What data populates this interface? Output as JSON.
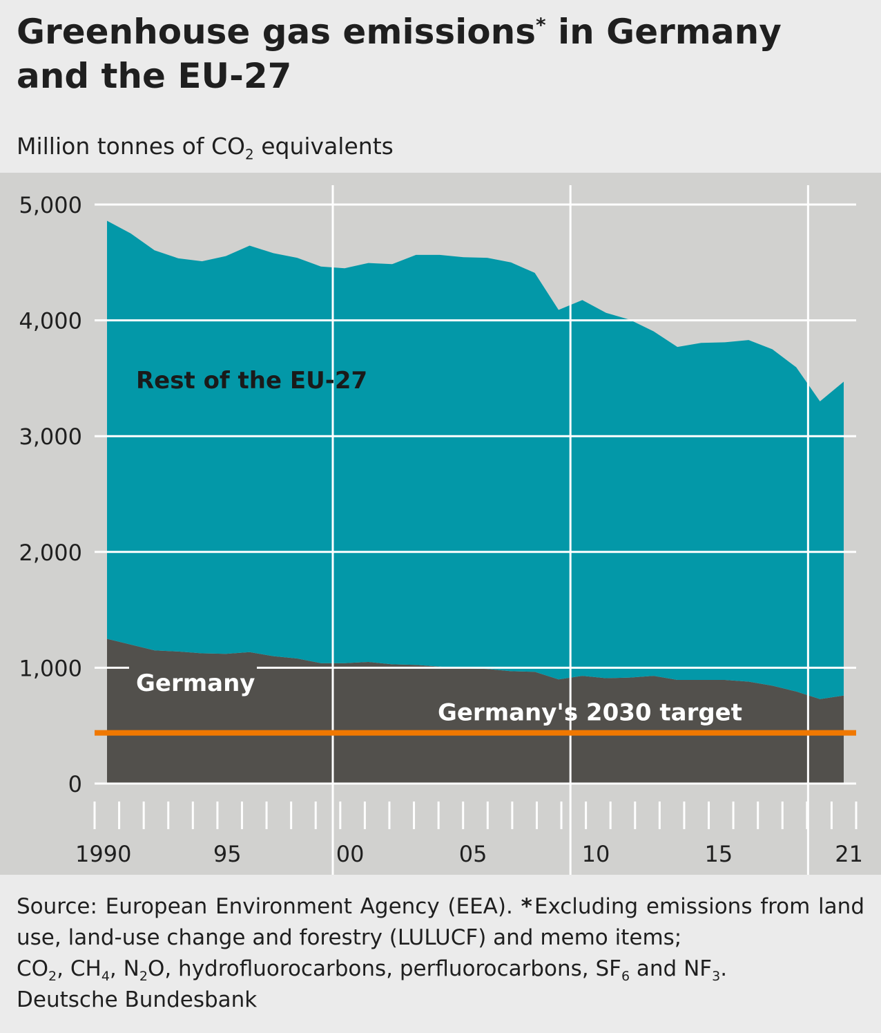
{
  "header": {
    "title_part1": "Greenhouse gas emissions",
    "title_asterisk": "*",
    "title_part2": " in Germany and the EU-27",
    "unit_part1": "Million tonnes of CO",
    "unit_sub": "2",
    "unit_part2": " equivalents"
  },
  "chart_data": {
    "type": "area",
    "stacked": true,
    "x": [
      1990,
      1991,
      1992,
      1993,
      1994,
      1995,
      1996,
      1997,
      1998,
      1999,
      2000,
      2001,
      2002,
      2003,
      2004,
      2005,
      2006,
      2007,
      2008,
      2009,
      2010,
      2011,
      2012,
      2013,
      2014,
      2015,
      2016,
      2017,
      2018,
      2019,
      2020,
      2021
    ],
    "x_tick_labels": [
      {
        "x": 1990,
        "label": "1990"
      },
      {
        "x": 1995,
        "label": "95"
      },
      {
        "x": 2000,
        "label": "00"
      },
      {
        "x": 2005,
        "label": "05"
      },
      {
        "x": 2010,
        "label": "10"
      },
      {
        "x": 2015,
        "label": "15"
      },
      {
        "x": 2021,
        "label": "21"
      }
    ],
    "ylim": [
      0,
      5000
    ],
    "y_ticks": [
      0,
      1000,
      2000,
      3000,
      4000,
      5000
    ],
    "y_tick_labels": [
      "0",
      "1,000",
      "2,000",
      "3,000",
      "4,000",
      "5,000"
    ],
    "grid": true,
    "series": [
      {
        "name": "Germany",
        "color": "#52504c",
        "values": [
          1250,
          1200,
          1150,
          1140,
          1125,
          1120,
          1135,
          1100,
          1080,
          1040,
          1040,
          1050,
          1030,
          1025,
          1010,
          995,
          990,
          970,
          965,
          900,
          930,
          910,
          915,
          930,
          895,
          895,
          895,
          880,
          845,
          795,
          730,
          760
        ]
      },
      {
        "name": "Rest of the EU-27",
        "color": "#0398a8",
        "values": [
          3610,
          3550,
          3455,
          3395,
          3385,
          3435,
          3510,
          3480,
          3460,
          3425,
          3410,
          3445,
          3455,
          3540,
          3555,
          3550,
          3550,
          3530,
          3445,
          3190,
          3245,
          3155,
          3090,
          2975,
          2875,
          2910,
          2915,
          2950,
          2905,
          2800,
          2570,
          2710
        ]
      }
    ],
    "target": {
      "label": "Germany's 2030 target",
      "value": 438,
      "color": "#f07800"
    },
    "series_labels": {
      "rest": "Rest of the EU-27",
      "germany": "Germany"
    }
  },
  "footer": {
    "source_label": "Source: European Environment Agency (EEA).",
    "note_asterisk": "*",
    "note_text": "Excluding emissions from land use, land-use change and forestry (LULUCF) and memo items;",
    "gases_line": "CO₂, CH₄, N₂O, hydrofluorocarbons, perfluorocarbons, SF₆ and NF₃.",
    "gas_co": "CO",
    "gas_ch": "CH",
    "gas_n": "N",
    "gas_n_rest": "O, hydrofluorocarbons, perfluorocarbons, SF",
    "gas_and": " and NF",
    "sub_2": "2",
    "sub_4": "4",
    "sub_6": "6",
    "sub_3": "3",
    "publisher": "Deutsche Bundesbank"
  }
}
